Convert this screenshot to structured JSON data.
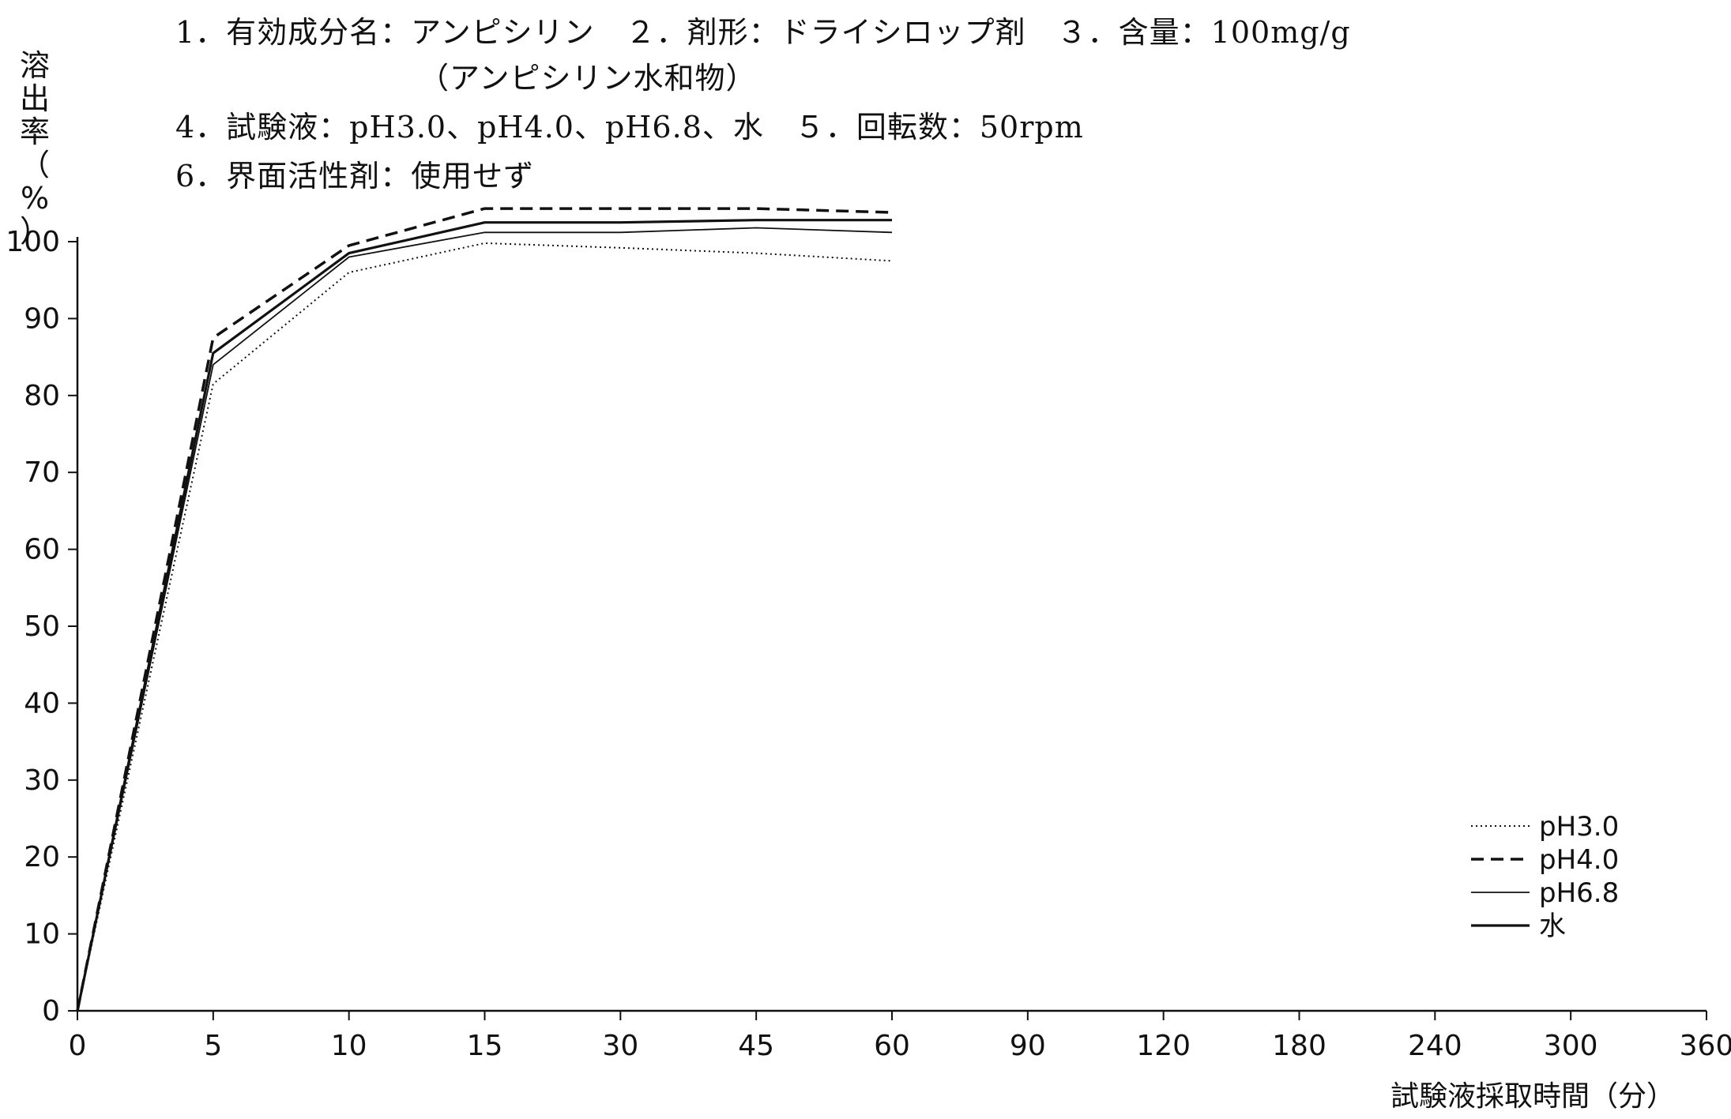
{
  "header": {
    "line1": "1．有効成分名：アンピシリン　２．剤形：ドライシロップ剤　３．含量：100mg/g",
    "line2": "（アンピシリン水和物）",
    "line3": "4．試験液：pH3.0、pH4.0、pH6.8、水　５．回転数：50rpm",
    "line4": "6．界面活性剤：使用せず"
  },
  "chart_data": {
    "type": "line",
    "title": "",
    "ylabel": "溶出率（%）",
    "ylabel_chars": [
      "溶",
      "出",
      "率",
      "（",
      "%",
      "）"
    ],
    "xlabel": "試験液採取時間（分）",
    "categories": [
      "0",
      "5",
      "10",
      "15",
      "30",
      "45",
      "60",
      "90",
      "120",
      "180",
      "240",
      "300",
      "360"
    ],
    "yticks": [
      "0",
      "10",
      "20",
      "30",
      "40",
      "50",
      "60",
      "70",
      "80",
      "90",
      "100"
    ],
    "ylim": [
      0,
      100
    ],
    "grid": false,
    "legend_position": "bottom-right",
    "series": [
      {
        "name": "pH3.0",
        "style": "dotted",
        "x": [
          "0",
          "5",
          "10",
          "15",
          "30",
          "45",
          "60"
        ],
        "values": [
          0,
          81.5,
          96,
          99.8,
          99.2,
          98.5,
          97.5
        ]
      },
      {
        "name": "pH4.0",
        "style": "dashed",
        "x": [
          "0",
          "5",
          "10",
          "15",
          "30",
          "45",
          "60"
        ],
        "values": [
          0,
          87.5,
          99.5,
          104.3,
          104.3,
          104.3,
          103.8
        ]
      },
      {
        "name": "pH6.8",
        "style": "thin",
        "x": [
          "0",
          "5",
          "10",
          "15",
          "30",
          "45",
          "60"
        ],
        "values": [
          0,
          84,
          98,
          101.2,
          101.2,
          101.8,
          101.2
        ]
      },
      {
        "name": "水",
        "style": "solid",
        "x": [
          "0",
          "5",
          "10",
          "15",
          "30",
          "45",
          "60"
        ],
        "values": [
          0,
          85.5,
          98.5,
          102.5,
          102.5,
          102.8,
          102.8
        ]
      }
    ]
  }
}
